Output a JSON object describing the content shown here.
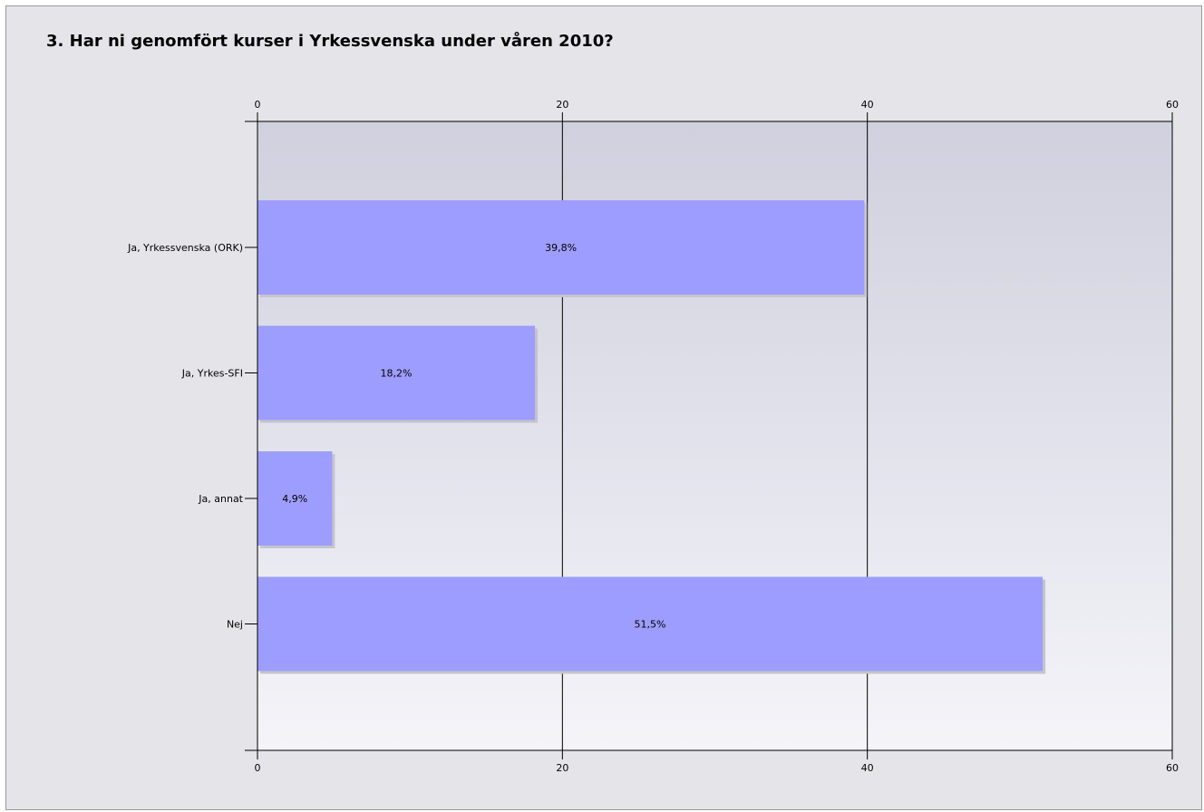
{
  "chart_data": {
    "type": "bar",
    "orientation": "horizontal",
    "title": "3. Har ni genomfört kurser i Yrkessvenska under våren 2010?",
    "categories": [
      "Ja, Yrkessvenska (ORK)",
      "Ja, Yrkes-SFI",
      "Ja, annat",
      "Nej"
    ],
    "values": [
      39.8,
      18.2,
      4.9,
      51.5
    ],
    "value_labels": [
      "39,8%",
      "18,2%",
      "4,9%",
      "51,5%"
    ],
    "xlim": [
      0,
      60
    ],
    "xticks": [
      0,
      20,
      40,
      60
    ],
    "tick_labels_top": true,
    "tick_labels_bottom": true,
    "grid": "vertical",
    "xlabel": "",
    "ylabel": ""
  },
  "colors": {
    "bar": "#9d9dff",
    "bar_shadow": "#c4c4cc",
    "plot_gradient_top": "#d0d0de",
    "plot_gradient_bottom": "#f4f4f9",
    "axis": "#000000"
  }
}
